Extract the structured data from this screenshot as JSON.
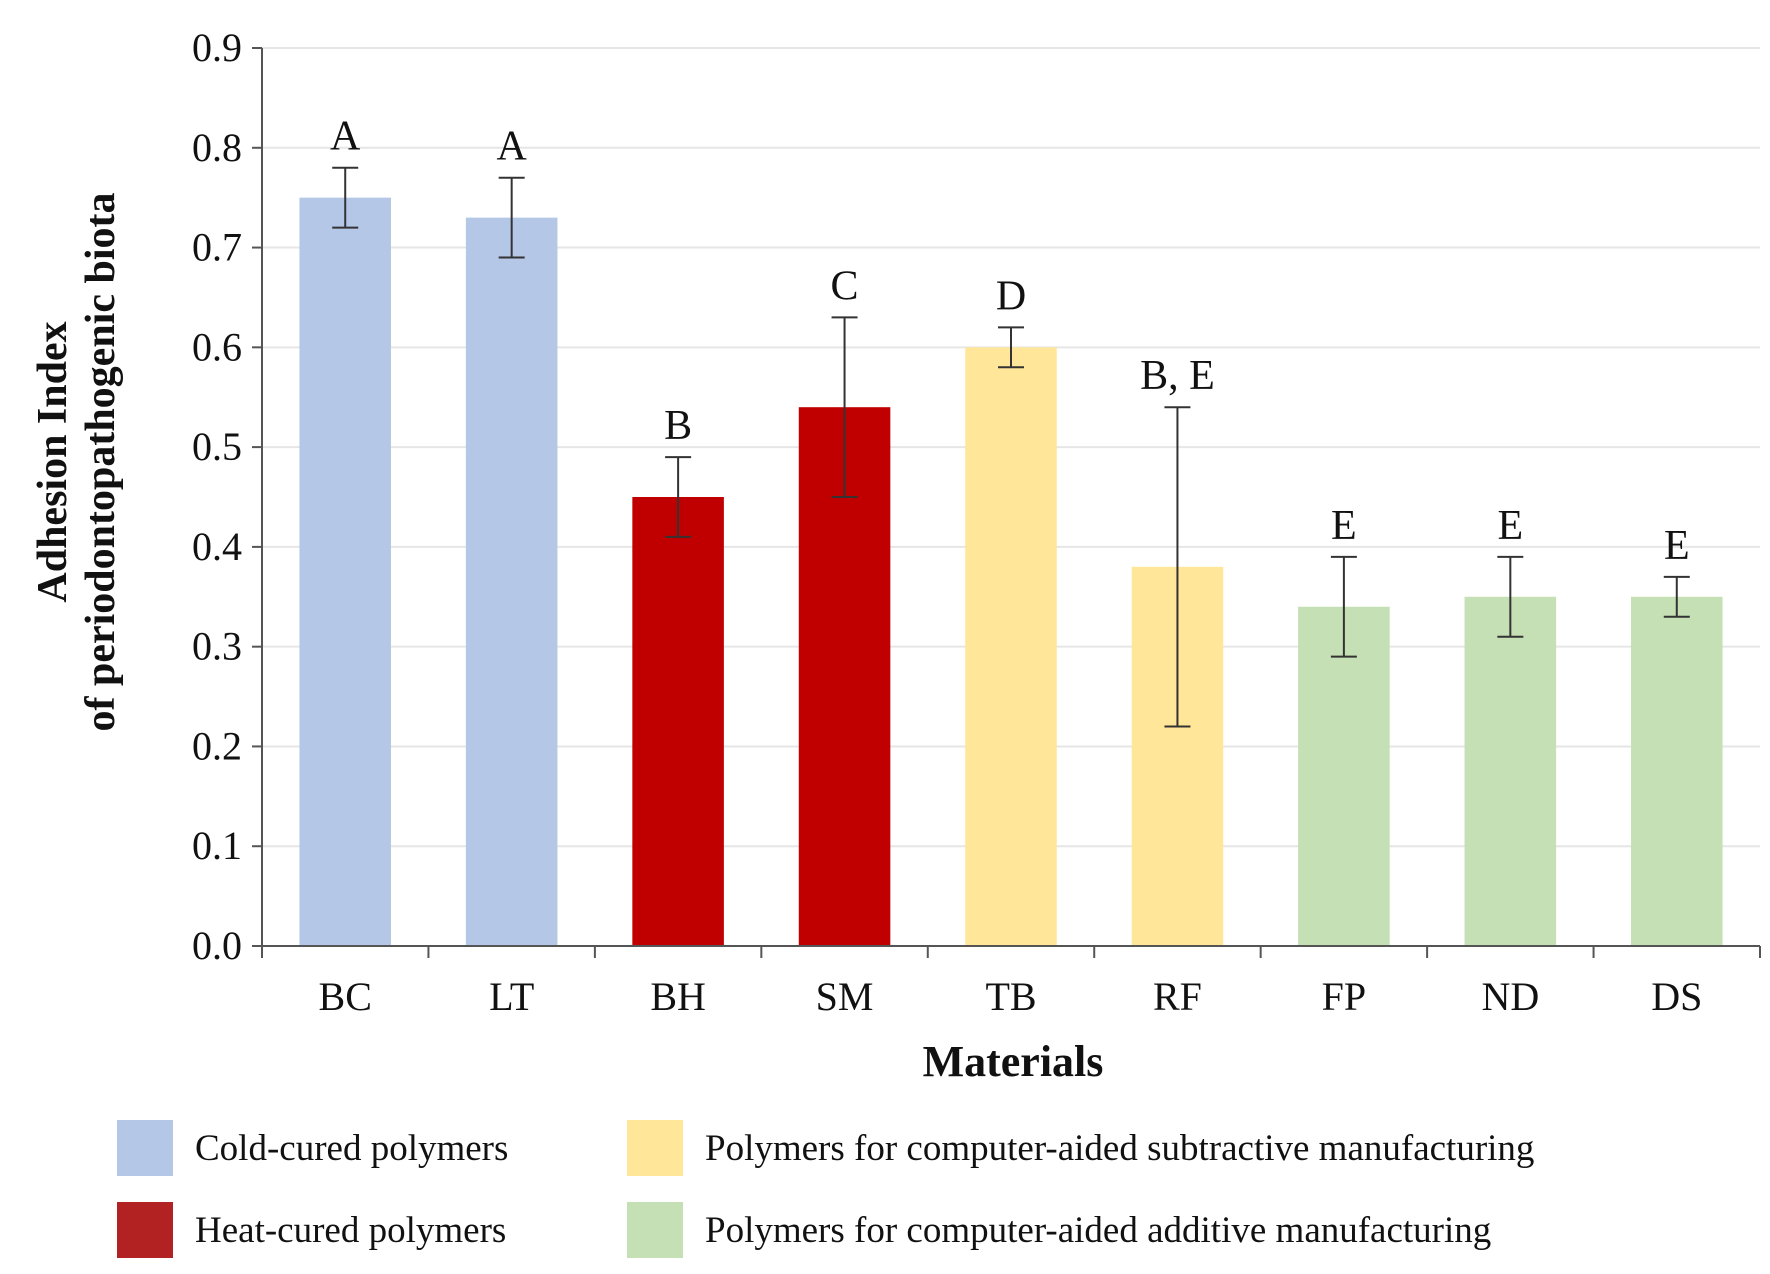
{
  "chart_data": {
    "type": "bar",
    "xlabel": "Materials",
    "ylabel_lines": [
      "Adhesion Index",
      "of periodontopathogenic biota"
    ],
    "ylim": [
      0,
      0.9
    ],
    "yticks": [
      "0.0",
      "0.1",
      "0.2",
      "0.3",
      "0.4",
      "0.5",
      "0.6",
      "0.7",
      "0.8",
      "0.9"
    ],
    "grid": true,
    "categories": [
      "BC",
      "LT",
      "BH",
      "SM",
      "TB",
      "RF",
      "FP",
      "ND",
      "DS"
    ],
    "values": [
      0.75,
      0.73,
      0.45,
      0.54,
      0.6,
      0.38,
      0.34,
      0.35,
      0.35
    ],
    "error_low": [
      0.72,
      0.69,
      0.41,
      0.45,
      0.58,
      0.22,
      0.29,
      0.31,
      0.33
    ],
    "error_high": [
      0.78,
      0.77,
      0.49,
      0.63,
      0.62,
      0.54,
      0.39,
      0.39,
      0.37
    ],
    "significance_labels": [
      "A",
      "A",
      "B",
      "C",
      "D",
      "B, E",
      "E",
      "E",
      "E"
    ],
    "groups": [
      0,
      0,
      1,
      1,
      2,
      2,
      3,
      3,
      3
    ]
  },
  "legend": {
    "items": [
      {
        "label": "Cold-cured polymers",
        "color": "#b4c7e7"
      },
      {
        "label": "Heat-cured polymers",
        "color": "#c00000"
      },
      {
        "label": "Polymers for computer-aided subtractive manufacturing",
        "color": "#ffe699"
      },
      {
        "label": "Polymers for computer-aided additive manufacturing",
        "color": "#c5e0b4"
      }
    ]
  },
  "colors": {
    "bar_cold": "#b4c7e7",
    "bar_heat": "#c00000",
    "bar_subtractive": "#ffe699",
    "bar_additive": "#c5e0b4",
    "legend_heat": "#b22222",
    "axis": "#555555",
    "grid": "#e6e6e6",
    "errorbar": "#333333"
  }
}
